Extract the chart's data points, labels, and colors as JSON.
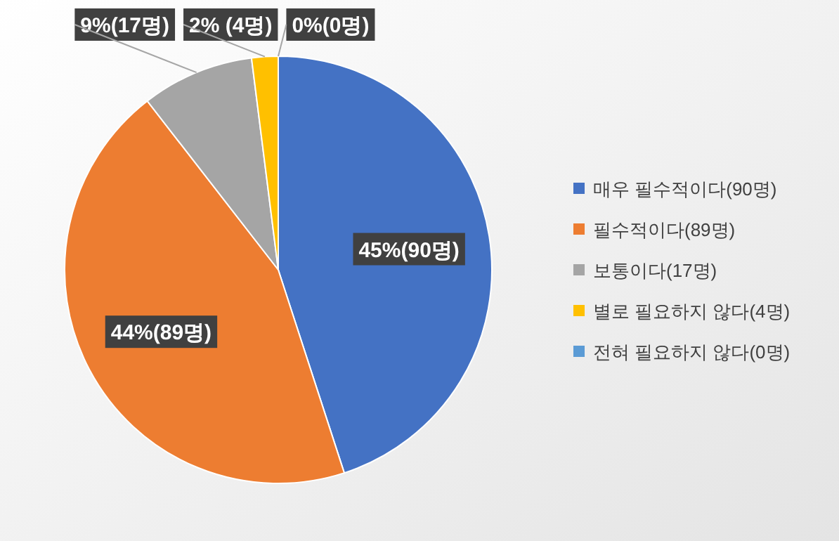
{
  "chart_data": {
    "type": "pie",
    "categories": [
      "매우 필수적이다(90명)",
      "필수적이다(89명)",
      "보통이다(17명)",
      "별로 필요하지 않다(4명)",
      "전혀 필요하지 않다(0명)"
    ],
    "values": [
      90,
      89,
      17,
      4,
      0
    ],
    "colors": [
      "#4472c4",
      "#ed7d31",
      "#a5a5a5",
      "#ffc000",
      "#5b9bd5"
    ],
    "value_labels": [
      "45%(90명)",
      "44%(89명)",
      "9%(17명)",
      "2% (4명)",
      "0%(0명)"
    ],
    "legend": "right"
  }
}
